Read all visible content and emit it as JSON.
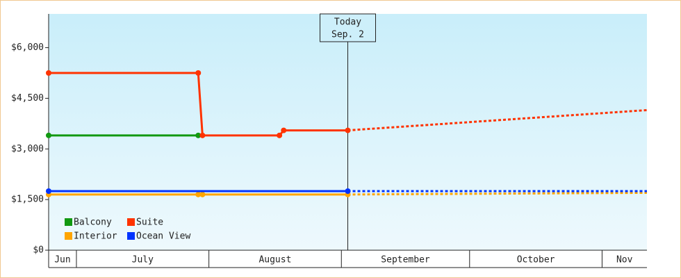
{
  "chart_data": {
    "type": "line",
    "yticks": [
      {
        "value": 0,
        "label": "$0"
      },
      {
        "value": 1500,
        "label": "$1,500"
      },
      {
        "value": 3000,
        "label": "$3,000"
      },
      {
        "value": 4500,
        "label": "$4,500"
      },
      {
        "value": 6000,
        "label": "$6,000"
      }
    ],
    "ylim": [
      0,
      7000
    ],
    "xlim": [
      0,
      140
    ],
    "xticks": [
      {
        "value": 0,
        "label": "Jun"
      },
      {
        "value": 6.5,
        "label": "July"
      },
      {
        "value": 37.5,
        "label": "August"
      },
      {
        "value": 68.5,
        "label": "September"
      },
      {
        "value": 98.5,
        "label": "October"
      },
      {
        "value": 129.5,
        "label": "Nov"
      }
    ],
    "annotation": {
      "x": 70,
      "lines": [
        "Today",
        "Sep. 2"
      ]
    },
    "series": [
      {
        "name": "Balcony",
        "color": "#119911",
        "x": [
          0,
          35
        ],
        "values": [
          3400,
          3400
        ]
      },
      {
        "name": "Suite",
        "color": "#ff3300",
        "x": [
          0,
          35,
          36,
          54,
          55,
          70
        ],
        "values": [
          5250,
          5250,
          3400,
          3400,
          3550,
          3550
        ],
        "forecast_x": [
          70,
          140
        ],
        "forecast_values": [
          3550,
          4150
        ]
      },
      {
        "name": "Interior",
        "color": "#ffa500",
        "x": [
          0,
          35,
          36,
          70
        ],
        "values": [
          1650,
          1650,
          1650,
          1650
        ],
        "forecast_x": [
          70,
          140
        ],
        "forecast_values": [
          1650,
          1700
        ]
      },
      {
        "name": "Ocean View",
        "color": "#0033ff",
        "x": [
          0,
          70
        ],
        "values": [
          1750,
          1750
        ],
        "forecast_x": [
          70,
          140
        ],
        "forecast_values": [
          1750,
          1750
        ]
      }
    ]
  }
}
